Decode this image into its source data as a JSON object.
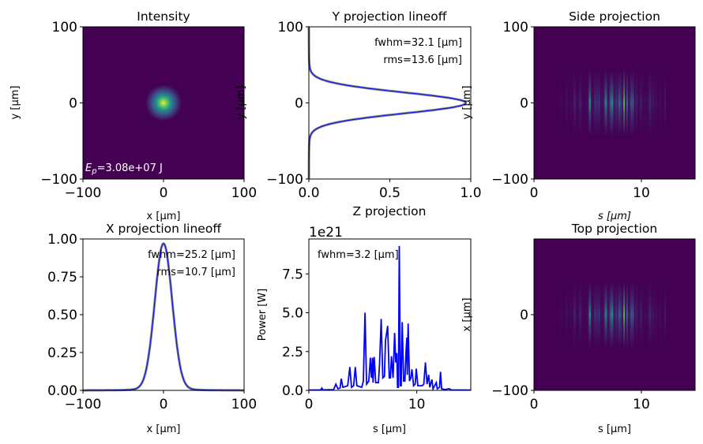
{
  "chart_data": [
    {
      "type": "heatmap",
      "title": "Intensity",
      "xlabel": "x [μm]",
      "ylabel": "y [μm]",
      "xlim": [
        -100,
        100
      ],
      "ylim": [
        -100,
        100
      ],
      "xticks": [
        "−100",
        "0",
        "100"
      ],
      "xtick_values": [
        -100,
        0,
        100
      ],
      "yticks": [
        "−100",
        "0",
        "100"
      ],
      "ytick_values": [
        -100,
        0,
        100
      ],
      "annotation": {
        "symbol": "E",
        "subscript": "p",
        "text": "=3.08e+07 J"
      },
      "spot_center": [
        0,
        0
      ],
      "colormap": "viridis"
    },
    {
      "type": "line",
      "title": "Y projection lineoff",
      "xlabel": "",
      "ylabel": "y [μm]",
      "xlim": [
        0,
        1
      ],
      "ylim": [
        -100,
        100
      ],
      "xticks": [
        "0.0",
        "0.5",
        "1.0"
      ],
      "xtick_values": [
        0,
        0.5,
        1
      ],
      "yticks": [
        "−100",
        "0",
        "100"
      ],
      "ytick_values": [
        -100,
        0,
        100
      ],
      "annotations": [
        "fwhm=32.1  [μm]",
        "rms=13.6 [μm]"
      ],
      "fwhm": 32.1,
      "line_color": "#0000ff",
      "fit_color": "#888888"
    },
    {
      "type": "heatmap",
      "title": "Side projection",
      "xlabel": "s [μm]",
      "ylabel": "y [μm]",
      "xlim": [
        0,
        15
      ],
      "ylim": [
        -100,
        100
      ],
      "xticks": [
        "0",
        "10"
      ],
      "xtick_values": [
        0,
        10
      ],
      "yticks": [
        "−100",
        "0",
        "100"
      ],
      "ytick_values": [
        -100,
        0,
        100
      ],
      "colormap": "viridis"
    },
    {
      "type": "line",
      "title": "X projection lineoff",
      "xlabel": "x [μm]",
      "ylabel": "",
      "xlim": [
        -100,
        100
      ],
      "ylim": [
        0,
        1
      ],
      "xticks": [
        "−100",
        "0",
        "100"
      ],
      "xtick_values": [
        -100,
        0,
        100
      ],
      "yticks": [
        "0.00",
        "0.25",
        "0.50",
        "0.75",
        "1.00"
      ],
      "ytick_values": [
        0,
        0.25,
        0.5,
        0.75,
        1
      ],
      "annotations": [
        "fwhm=25.2  [μm]",
        "rms=10.7 [μm]"
      ],
      "fwhm": 25.2,
      "line_color": "#0000ff",
      "fit_color": "#888888"
    },
    {
      "type": "line",
      "title": "Z projection",
      "xlabel": "s [μm]",
      "ylabel": "Power [W]",
      "offset_text": "1e21",
      "xlim": [
        0,
        15
      ],
      "ylim": [
        0,
        9.75
      ],
      "xticks": [
        "0",
        "10"
      ],
      "xtick_values": [
        0,
        10
      ],
      "yticks": [
        "0.0",
        "2.5",
        "5.0",
        "7.5"
      ],
      "ytick_values": [
        0,
        2.5,
        5,
        7.5
      ],
      "annotations": [
        "fwhm=3.2  [μm]"
      ],
      "line_color": "#0000ff",
      "points": [
        [
          0,
          0.02
        ],
        [
          1.1,
          0.03
        ],
        [
          1.2,
          0.15
        ],
        [
          1.3,
          0.03
        ],
        [
          2.3,
          0.05
        ],
        [
          2.5,
          0.4
        ],
        [
          2.7,
          0.1
        ],
        [
          2.9,
          0.15
        ],
        [
          3.0,
          0.75
        ],
        [
          3.15,
          0.2
        ],
        [
          3.6,
          0.3
        ],
        [
          3.8,
          1.5
        ],
        [
          3.95,
          0.2
        ],
        [
          4.15,
          0.3
        ],
        [
          4.3,
          1.5
        ],
        [
          4.45,
          0.3
        ],
        [
          4.9,
          0.2
        ],
        [
          5.05,
          0.6
        ],
        [
          5.2,
          5.0
        ],
        [
          5.35,
          0.4
        ],
        [
          5.55,
          0.6
        ],
        [
          5.7,
          2.1
        ],
        [
          5.8,
          0.8
        ],
        [
          5.9,
          2.1
        ],
        [
          5.95,
          0.5
        ],
        [
          6.05,
          2.15
        ],
        [
          6.2,
          0.5
        ],
        [
          6.45,
          0.5
        ],
        [
          6.55,
          1.7
        ],
        [
          6.7,
          4.6
        ],
        [
          6.85,
          0.8
        ],
        [
          7.0,
          0.9
        ],
        [
          7.1,
          3.2
        ],
        [
          7.3,
          4.15
        ],
        [
          7.45,
          0.8
        ],
        [
          7.55,
          0.8
        ],
        [
          7.65,
          2.2
        ],
        [
          7.8,
          0.8
        ],
        [
          7.95,
          3.7
        ],
        [
          8.05,
          1.8
        ],
        [
          8.15,
          2.4
        ],
        [
          8.22,
          0.2
        ],
        [
          8.3,
          0.2
        ],
        [
          8.38,
          9.3
        ],
        [
          8.48,
          0.3
        ],
        [
          8.55,
          0.3
        ],
        [
          8.65,
          4.4
        ],
        [
          8.78,
          0.6
        ],
        [
          8.9,
          0.6
        ],
        [
          9.0,
          2.5
        ],
        [
          9.08,
          3.4
        ],
        [
          9.12,
          1.0
        ],
        [
          9.2,
          4.3
        ],
        [
          9.32,
          0.6
        ],
        [
          9.45,
          0.8
        ],
        [
          9.55,
          1.35
        ],
        [
          9.7,
          0.3
        ],
        [
          9.85,
          0.4
        ],
        [
          9.95,
          1.4
        ],
        [
          10.1,
          0.3
        ],
        [
          10.5,
          0.3
        ],
        [
          10.65,
          0.4
        ],
        [
          10.8,
          1.8
        ],
        [
          10.95,
          0.4
        ],
        [
          11.1,
          1.0
        ],
        [
          11.2,
          0.2
        ],
        [
          11.4,
          0.7
        ],
        [
          11.5,
          0.1
        ],
        [
          11.8,
          0.5
        ],
        [
          11.9,
          0.1
        ],
        [
          12.1,
          0.2
        ],
        [
          12.2,
          1.2
        ],
        [
          12.3,
          0.1
        ],
        [
          12.6,
          0.05
        ],
        [
          13.0,
          0.1
        ],
        [
          13.2,
          0.03
        ],
        [
          15,
          0.02
        ]
      ]
    },
    {
      "type": "heatmap",
      "title": "Top projection",
      "xlabel": "s [μm]",
      "ylabel": "x [μm]",
      "xlim": [
        0,
        15
      ],
      "ylim": [
        -100,
        100
      ],
      "xticks": [
        "0",
        "10"
      ],
      "xtick_values": [
        0,
        10
      ],
      "yticks": [
        "−100",
        "0"
      ],
      "ytick_values": [
        -100,
        0
      ],
      "colormap": "viridis"
    }
  ]
}
